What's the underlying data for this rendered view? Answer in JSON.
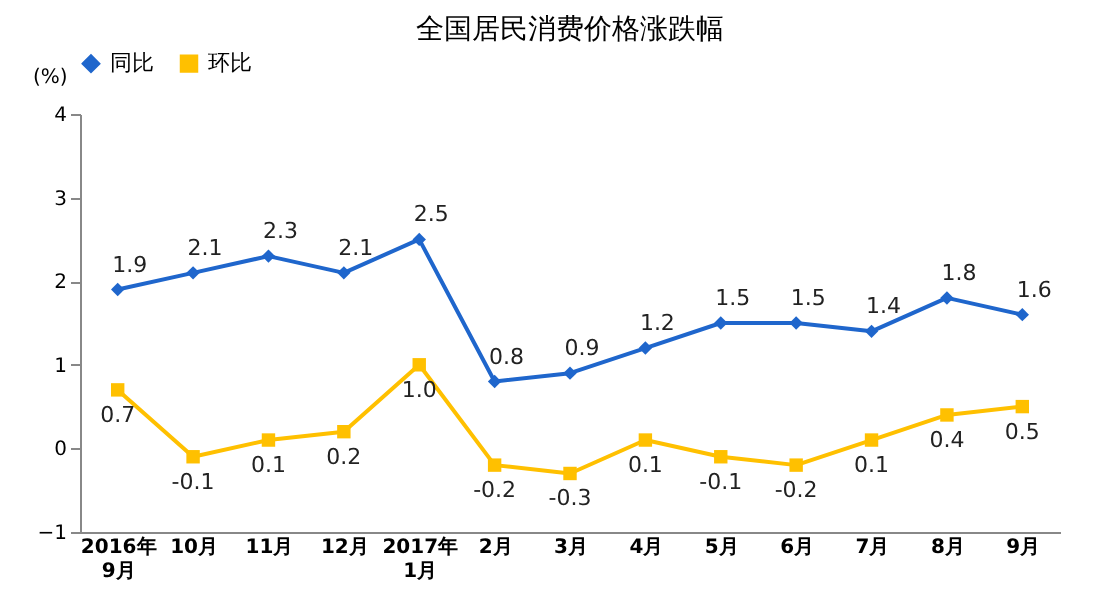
{
  "chart_data": {
    "type": "line",
    "title": "全国居民消费价格涨跌幅",
    "ylabel": "(%)",
    "categories": [
      "2016年\n9月",
      "10月",
      "11月",
      "12月",
      "2017年\n1月",
      "2月",
      "3月",
      "4月",
      "5月",
      "6月",
      "7月",
      "8月",
      "9月"
    ],
    "series": [
      {
        "name": "同比",
        "color": "#1f66cc",
        "marker": "diamond",
        "values": [
          1.9,
          2.1,
          2.3,
          2.1,
          2.5,
          0.8,
          0.9,
          1.2,
          1.5,
          1.5,
          1.4,
          1.8,
          1.6
        ],
        "value_labels": [
          "1.9",
          "2.1",
          "2.3",
          "2.1",
          "2.5",
          "0.8",
          "0.9",
          "1.2",
          "1.5",
          "1.5",
          "1.4",
          "1.8",
          "1.6"
        ]
      },
      {
        "name": "环比",
        "color": "#ffc000",
        "marker": "square",
        "values": [
          0.7,
          -0.1,
          0.1,
          0.2,
          1.0,
          -0.2,
          -0.3,
          0.1,
          -0.1,
          -0.2,
          0.1,
          0.4,
          0.5
        ],
        "value_labels": [
          "0.7",
          "-0.1",
          "0.1",
          "0.2",
          "1.0",
          "-0.2",
          "-0.3",
          "0.1",
          "-0.1",
          "-0.2",
          "0.1",
          "0.4",
          "0.5"
        ]
      }
    ],
    "ylim": [
      -1,
      4
    ],
    "yticks": [
      -1,
      0,
      1,
      2,
      3,
      4
    ],
    "grid": false,
    "legend": "top",
    "line_style": "solid"
  }
}
